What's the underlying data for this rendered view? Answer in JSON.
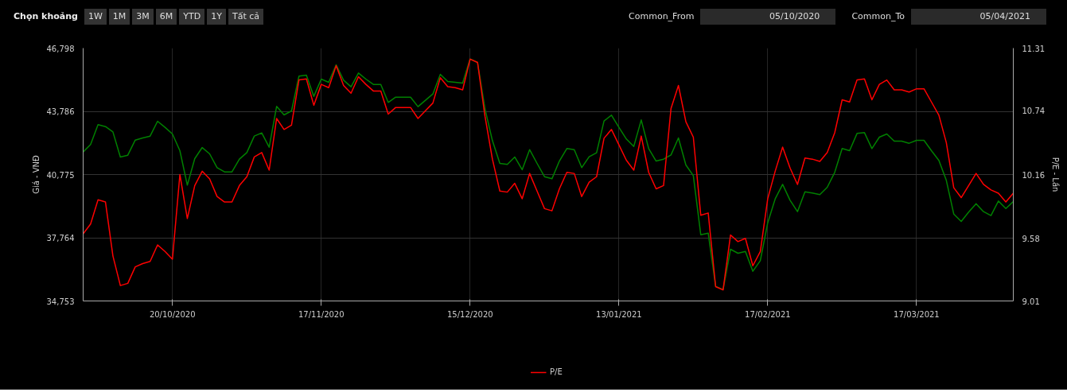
{
  "chart_data": {
    "type": "line",
    "annotations": [
      "Chọn khoảng",
      "1W",
      "1M",
      "3M",
      "6M",
      "YTD",
      "1Y",
      "Tất cả",
      "Common_From",
      "05/10/2020",
      "Common_To",
      "05/04/2021"
    ],
    "ylabel": "Giá - VNĐ",
    "y2label": "P/E - Lần",
    "categories": [
      null,
      null,
      null,
      null,
      null,
      null,
      null,
      null,
      null,
      null,
      null,
      null,
      "20/10/2020",
      null,
      null,
      null,
      null,
      null,
      null,
      null,
      null,
      null,
      null,
      null,
      null,
      null,
      null,
      null,
      null,
      null,
      null,
      null,
      "17/11/2020",
      null,
      null,
      null,
      null,
      null,
      null,
      null,
      null,
      null,
      null,
      null,
      null,
      null,
      null,
      null,
      null,
      null,
      null,
      null,
      "15/12/2020",
      null,
      null,
      null,
      null,
      null,
      null,
      null,
      null,
      null,
      null,
      null,
      null,
      null,
      null,
      null,
      null,
      null,
      null,
      null,
      "13/01/2021",
      null,
      null,
      null,
      null,
      null,
      null,
      null,
      null,
      null,
      null,
      null,
      null,
      null,
      null,
      null,
      null,
      null,
      null,
      null,
      "17/02/2021",
      null,
      null,
      null,
      null,
      null,
      null,
      null,
      null,
      null,
      null,
      null,
      null,
      null,
      null,
      null,
      null,
      null,
      null,
      null,
      "17/03/2021",
      null,
      null,
      null,
      null,
      null,
      null,
      null,
      null,
      null,
      null,
      null,
      null,
      null
    ],
    "series": [
      {
        "color": "#008000",
        "values": [
          41849,
          42202,
          43149,
          43061,
          42808,
          41609,
          41697,
          42417,
          42518,
          42606,
          43313,
          43023,
          42707,
          41912,
          40270,
          41533,
          42063,
          41760,
          41104,
          40902,
          40902,
          41508,
          41823,
          42606,
          42758,
          42076,
          44020,
          43616,
          43806,
          45460,
          45510,
          44500,
          45321,
          45169,
          46003,
          45270,
          44955,
          45611,
          45321,
          45068,
          45068,
          44210,
          44462,
          44462,
          44462,
          44008,
          44311,
          44614,
          45548,
          45207,
          45169,
          45131,
          46280,
          46116,
          43907,
          42392,
          41306,
          41255,
          41609,
          41003,
          41962,
          41306,
          40674,
          40573,
          41419,
          42013,
          41962,
          41104,
          41621,
          41811,
          43326,
          43604,
          43023,
          42467,
          42114,
          43376,
          42013,
          41419,
          41508,
          41710,
          42518,
          41230,
          40725,
          37909,
          37985,
          35447,
          35296,
          37215,
          37025,
          37114,
          36167,
          36672,
          38477,
          39614,
          40308,
          39551,
          39008,
          39955,
          39892,
          39816,
          40169,
          40876,
          42013,
          41912,
          42732,
          42770,
          42013,
          42556,
          42707,
          42366,
          42366,
          42265,
          42404,
          42404,
          41912,
          41445,
          40498,
          38894,
          38541,
          38983,
          39387,
          39008,
          38818,
          39513,
          39159,
          39488
        ]
      },
      {
        "name": "P/E",
        "color": "#ff0000",
        "axis": "y2",
        "values": [
          9.62,
          9.71,
          9.93,
          9.91,
          9.42,
          9.15,
          9.17,
          9.32,
          9.35,
          9.37,
          9.52,
          9.46,
          9.39,
          10.16,
          9.76,
          10.06,
          10.19,
          10.12,
          9.96,
          9.91,
          9.91,
          10.06,
          10.14,
          10.32,
          10.36,
          10.2,
          10.67,
          10.57,
          10.61,
          11.02,
          11.03,
          10.79,
          10.98,
          10.95,
          11.15,
          10.97,
          10.9,
          11.05,
          10.98,
          10.92,
          10.92,
          10.71,
          10.77,
          10.77,
          10.77,
          10.67,
          10.74,
          10.81,
          11.04,
          10.96,
          10.95,
          10.93,
          11.21,
          11.18,
          10.69,
          10.3,
          10.01,
          10.0,
          10.08,
          9.94,
          10.17,
          10.01,
          9.85,
          9.83,
          10.03,
          10.18,
          10.17,
          9.96,
          10.09,
          10.14,
          10.49,
          10.57,
          10.43,
          10.29,
          10.2,
          10.51,
          10.18,
          10.03,
          10.06,
          10.76,
          10.97,
          10.64,
          10.5,
          9.79,
          9.81,
          9.14,
          9.11,
          9.61,
          9.55,
          9.58,
          9.33,
          9.46,
          9.94,
          10.19,
          10.41,
          10.22,
          10.07,
          10.31,
          10.3,
          10.28,
          10.36,
          10.54,
          10.84,
          10.82,
          11.02,
          11.03,
          10.84,
          10.98,
          11.02,
          10.93,
          10.93,
          10.91,
          10.94,
          10.94,
          10.82,
          10.7,
          10.45,
          10.04,
          9.95,
          10.06,
          10.17,
          10.07,
          10.02,
          9.99,
          9.91,
          9.99
        ]
      }
    ],
    "ylim": [
      34753,
      46798
    ],
    "yticks": [
      {
        "value": 34753,
        "label": "34,753"
      },
      {
        "value": 37764,
        "label": "37,764"
      },
      {
        "value": 40775,
        "label": "40,775"
      },
      {
        "value": 43786,
        "label": "43,786"
      },
      {
        "value": 46798,
        "label": "46,798"
      }
    ],
    "y2lim": [
      9.01,
      11.31
    ],
    "y2ticks": [
      9.01,
      9.58,
      10.16,
      10.74,
      11.31
    ],
    "grid": true,
    "legend": "bottom",
    "marker": "none",
    "line_style": "solid"
  }
}
